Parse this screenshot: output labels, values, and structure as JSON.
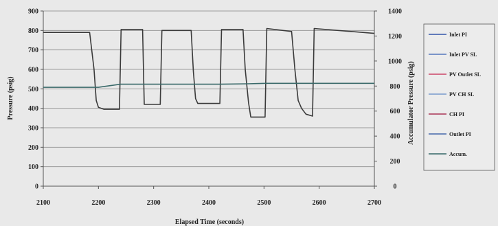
{
  "chart_data": {
    "type": "line",
    "xlabel": "Elapsed Time (seconds)",
    "ylabel_left": "Pressure (psig)",
    "ylabel_right": "Accumulator Pressure (psig)",
    "xlim": [
      2100,
      2700
    ],
    "ylim_left": [
      0,
      900
    ],
    "ylim_right": [
      0,
      1400
    ],
    "x_ticks": [
      "2100",
      "2200",
      "2300",
      "2400",
      "2500",
      "2600",
      "2700"
    ],
    "y_ticks_left": [
      "0",
      "100",
      "200",
      "300",
      "400",
      "500",
      "600",
      "700",
      "800",
      "900"
    ],
    "y_ticks_right": [
      "0",
      "200",
      "400",
      "600",
      "800",
      "1000",
      "1200",
      "1400"
    ],
    "grid": true,
    "legend_position": "right",
    "legend": [
      {
        "name": "Inlet PI",
        "color": "#3355aa"
      },
      {
        "name": "Inlet PV SL",
        "color": "#5577bb"
      },
      {
        "name": "PV Outlet SL",
        "color": "#cc4466"
      },
      {
        "name": "PV CH SL",
        "color": "#7799cc"
      },
      {
        "name": "CH PI",
        "color": "#aa3355"
      },
      {
        "name": "Outlet PI",
        "color": "#4466aa"
      },
      {
        "name": "Accum.",
        "color": "#336666"
      }
    ],
    "series": [
      {
        "name": "Inlet PI",
        "axis": "left",
        "color": "#3a3a3a",
        "x": [
          2100,
          2184,
          2192,
          2196,
          2200,
          2210,
          2238,
          2241,
          2280,
          2283,
          2312,
          2315,
          2368,
          2372,
          2376,
          2380,
          2420,
          2423,
          2462,
          2466,
          2472,
          2476,
          2502,
          2505,
          2550,
          2556,
          2562,
          2568,
          2576,
          2588,
          2591,
          2700
        ],
        "y": [
          790,
          790,
          600,
          440,
          405,
          395,
          395,
          805,
          805,
          420,
          420,
          800,
          800,
          590,
          450,
          425,
          425,
          805,
          805,
          600,
          430,
          355,
          355,
          810,
          795,
          600,
          440,
          400,
          370,
          360,
          810,
          785
        ]
      },
      {
        "name": "Accum.",
        "axis": "right",
        "color": "#3a6a6a",
        "x": [
          2100,
          2200,
          2240,
          2380,
          2420,
          2470,
          2505,
          2700
        ],
        "y": [
          790,
          790,
          815,
          815,
          815,
          818,
          822,
          822
        ]
      }
    ]
  }
}
